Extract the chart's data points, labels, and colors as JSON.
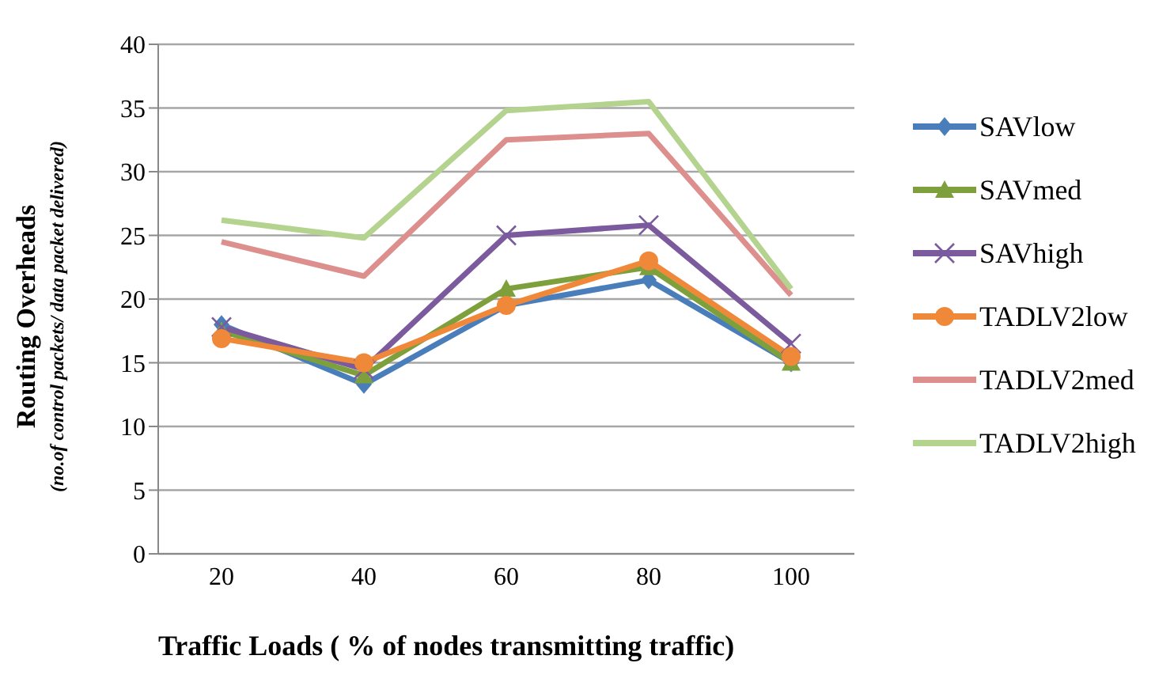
{
  "chart_data": {
    "type": "line",
    "xlabel": "Traffic Loads ( % of nodes transmitting traffic)",
    "ylabel": "Routing Overheads (no.of control packets/ data packet delivered)",
    "categories": [
      "20",
      "40",
      "60",
      "80",
      "100"
    ],
    "series": [
      {
        "name": "SAVlow",
        "color": "#4a7ebb",
        "marker": "diamond",
        "values": [
          18,
          13.3,
          19.5,
          21.5,
          15
        ]
      },
      {
        "name": "SAVmed",
        "color": "#7ea03c",
        "marker": "triangle",
        "values": [
          17.5,
          14,
          20.8,
          22.5,
          15
        ]
      },
      {
        "name": "SAVhigh",
        "color": "#7b5a9e",
        "marker": "cross",
        "values": [
          17.8,
          14.5,
          25,
          25.8,
          16.5
        ]
      },
      {
        "name": "TADLV2low",
        "color": "#f0883a",
        "marker": "circle",
        "values": [
          16.9,
          15,
          19.5,
          23,
          15.5
        ]
      },
      {
        "name": "TADLV2med",
        "color": "#dc8f8c",
        "marker": "none",
        "values": [
          24.5,
          21.8,
          32.5,
          33,
          20.3
        ]
      },
      {
        "name": "TADLV2high",
        "color": "#b4d38e",
        "marker": "none",
        "values": [
          26.2,
          24.8,
          34.8,
          35.5,
          20.8
        ]
      }
    ],
    "ylim": [
      0,
      40
    ],
    "yticks": [
      0,
      5,
      10,
      15,
      20,
      25,
      30,
      35,
      40
    ],
    "grid": "y",
    "legend": "right"
  }
}
